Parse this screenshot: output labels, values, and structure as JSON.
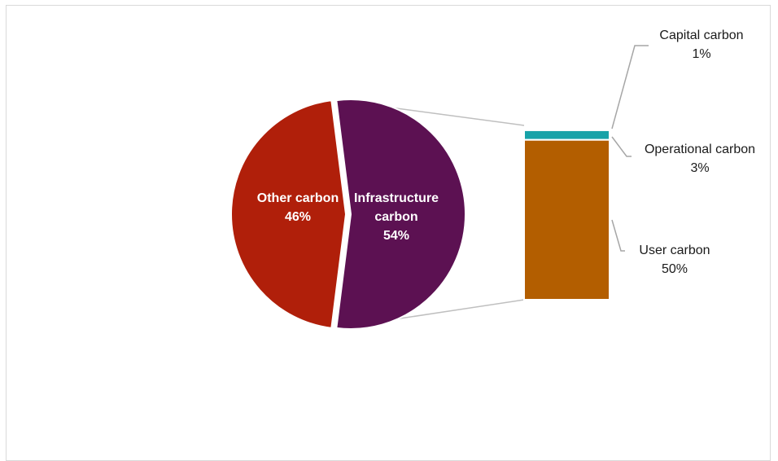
{
  "chart_data": {
    "type": "pie-of-bar",
    "pie": {
      "slices": [
        {
          "name_lines": [
            "Other carbon"
          ],
          "percent_label": "46%",
          "value": 46,
          "color": "#B01F0A"
        },
        {
          "name_lines": [
            "Infrastructure",
            "carbon"
          ],
          "percent_label": "54%",
          "value": 54,
          "color": "#5C1152"
        }
      ]
    },
    "bar": {
      "segments": [
        {
          "name": "Capital carbon",
          "percent_label": "1%",
          "value": 1,
          "color": "#FFFFFF"
        },
        {
          "name": "Operational carbon",
          "percent_label": "3%",
          "value": 3,
          "color": "#17A2A8"
        },
        {
          "name": "User carbon",
          "percent_label": "50%",
          "value": 50,
          "color": "#B35E00"
        }
      ]
    },
    "legend": "none",
    "grid": false
  }
}
